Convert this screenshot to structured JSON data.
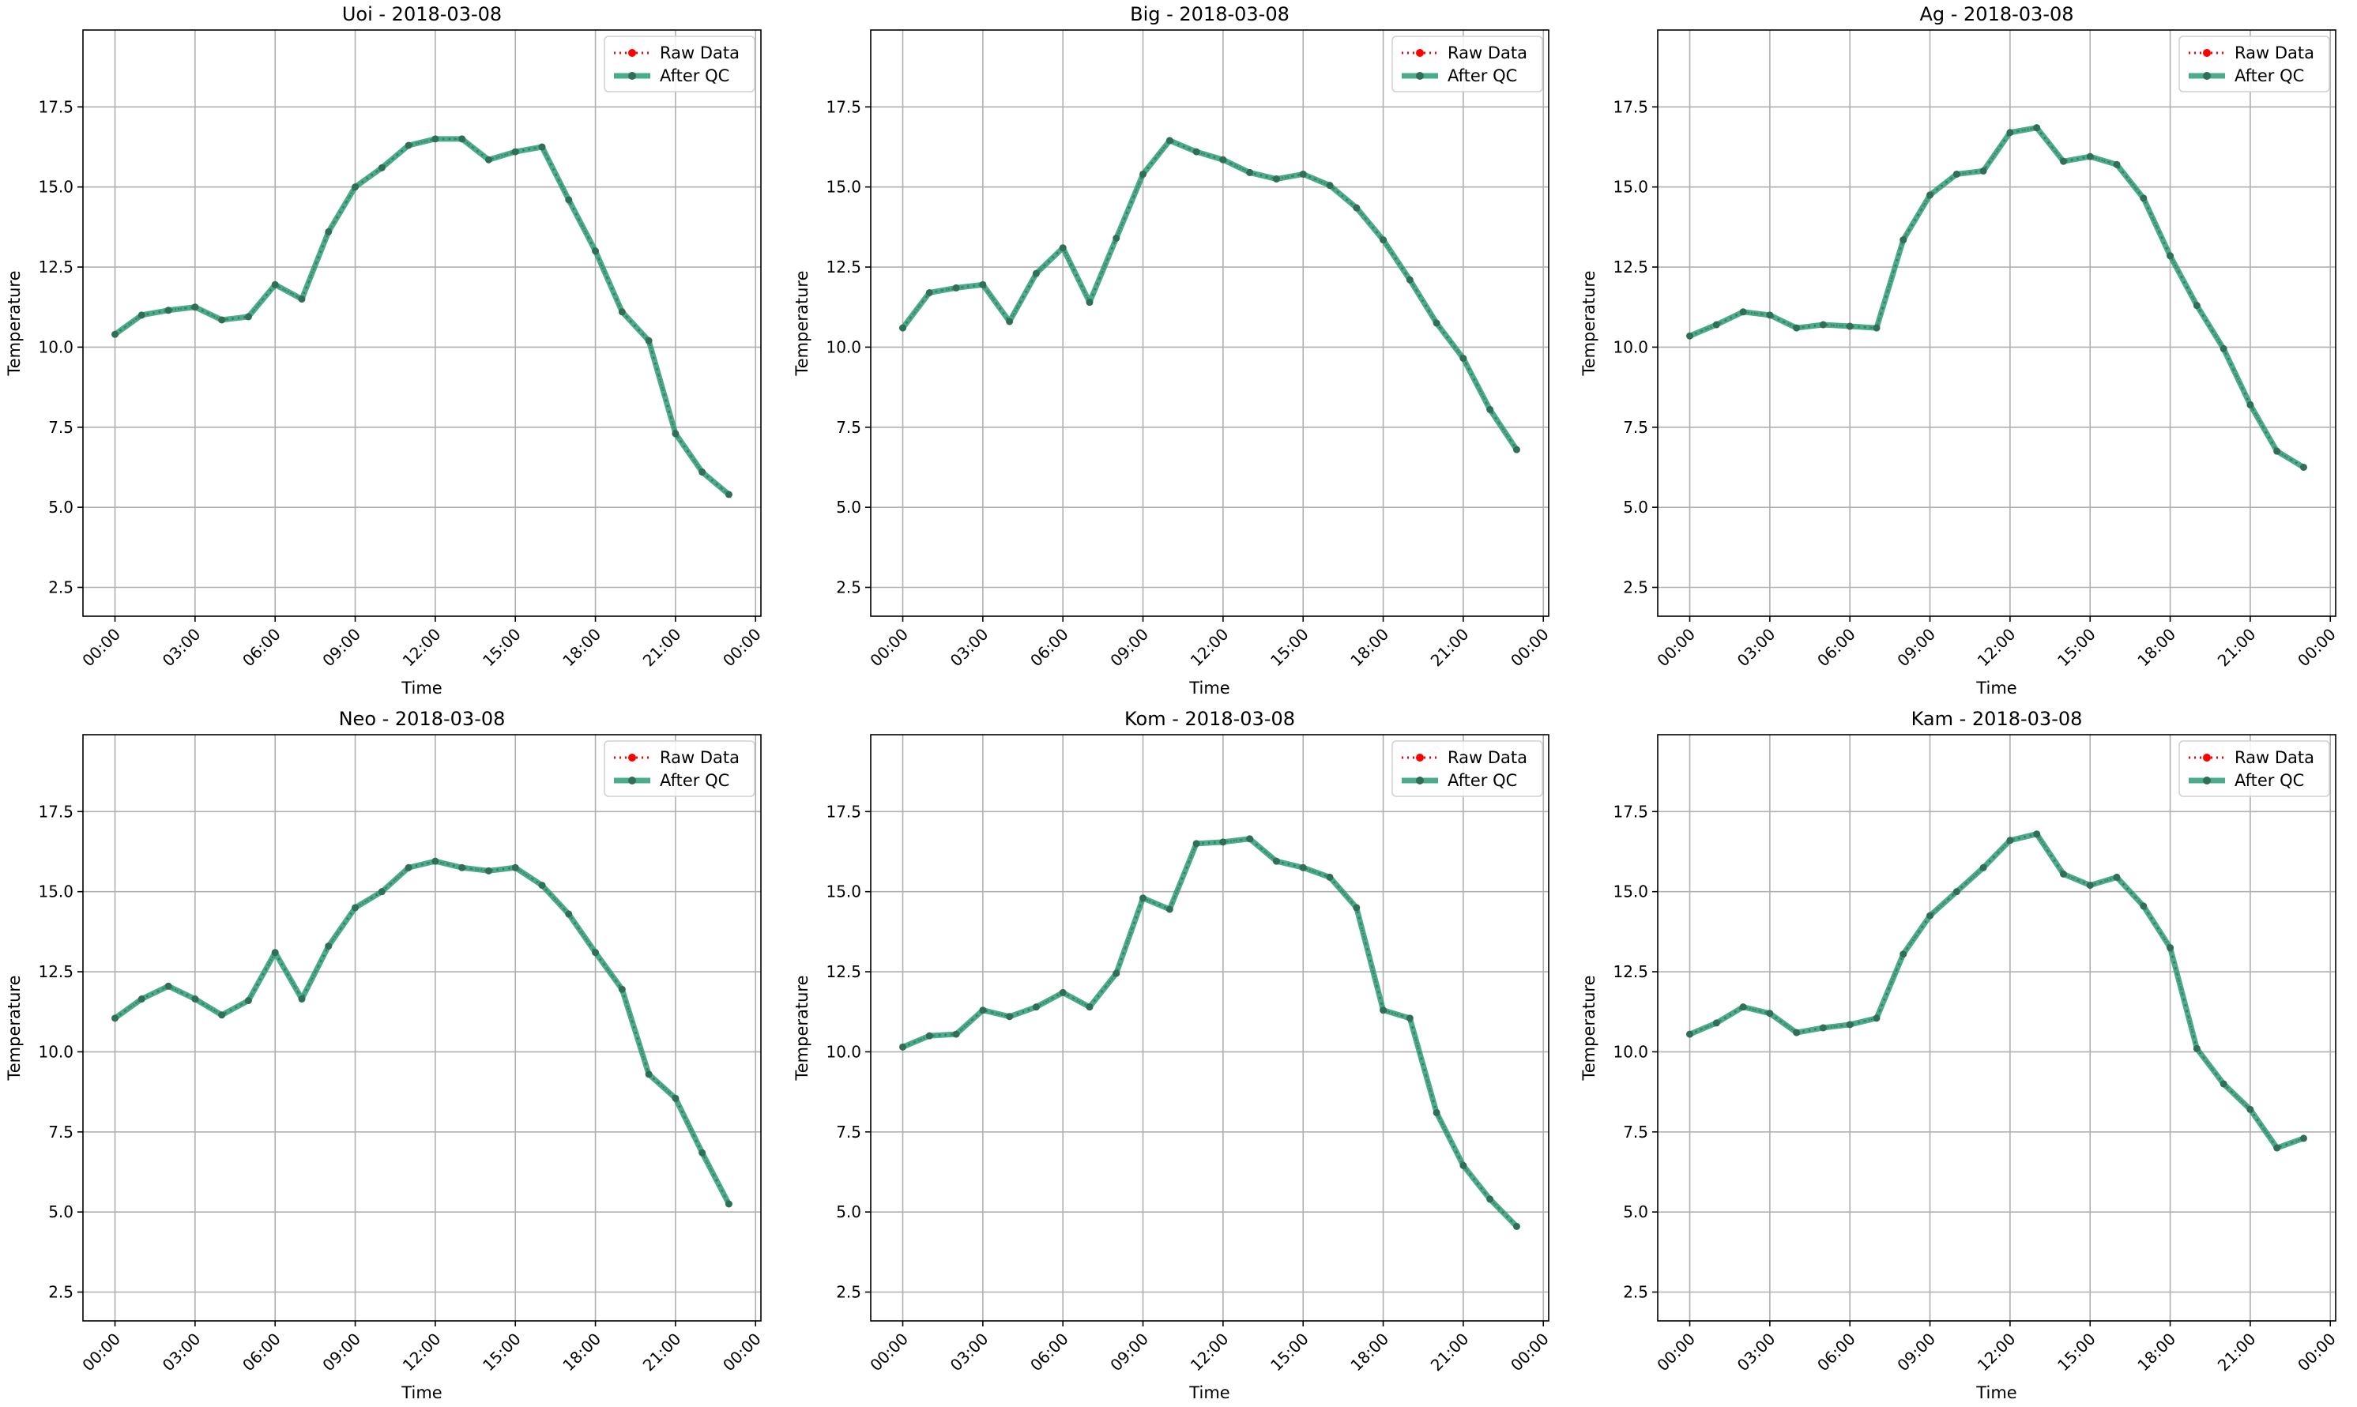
{
  "figure": {
    "x_ticks": [
      "00:00",
      "03:00",
      "06:00",
      "09:00",
      "12:00",
      "15:00",
      "18:00",
      "21:00",
      "00:00"
    ],
    "y_ticks": [
      "2.5",
      "5.0",
      "7.5",
      "10.0",
      "12.5",
      "15.0",
      "17.5"
    ],
    "legend": {
      "raw_label": "Raw Data",
      "qc_label": "After QC"
    },
    "colors": {
      "raw": "#ff0000",
      "qc": "#2a9d76",
      "qc_marker": "#2f6f55",
      "grid": "#b0b0b0"
    }
  },
  "chart_data": [
    {
      "type": "line",
      "title": "Uoi - 2018-03-08",
      "xlabel": "Time",
      "ylabel": "Temperature",
      "xlim": [
        -1.2,
        24.2
      ],
      "ylim": [
        1.6,
        19.9
      ],
      "grid": true,
      "legend_position": "upper-right",
      "x": [
        0,
        1,
        2,
        3,
        4,
        5,
        6,
        7,
        8,
        9,
        10,
        11,
        12,
        13,
        14,
        15,
        16,
        17,
        18,
        19,
        20,
        21,
        22,
        23
      ],
      "series": [
        {
          "name": "Raw Data",
          "values": [
            10.4,
            11.0,
            11.15,
            11.25,
            10.85,
            10.95,
            11.95,
            11.5,
            13.6,
            15.0,
            15.6,
            16.3,
            16.5,
            16.5,
            15.85,
            16.1,
            16.25,
            14.6,
            13.0,
            11.1,
            10.2,
            7.3,
            6.1,
            5.4
          ]
        },
        {
          "name": "After QC",
          "values": [
            10.4,
            11.0,
            11.15,
            11.25,
            10.85,
            10.95,
            11.95,
            11.5,
            13.6,
            15.0,
            15.6,
            16.3,
            16.5,
            16.5,
            15.85,
            16.1,
            16.25,
            14.6,
            13.0,
            11.1,
            10.2,
            7.3,
            6.1,
            5.4
          ]
        }
      ]
    },
    {
      "type": "line",
      "title": "Big - 2018-03-08",
      "xlabel": "Time",
      "ylabel": "Temperature",
      "xlim": [
        -1.2,
        24.2
      ],
      "ylim": [
        1.6,
        19.9
      ],
      "grid": true,
      "legend_position": "upper-right",
      "x": [
        0,
        1,
        2,
        3,
        4,
        5,
        6,
        7,
        8,
        9,
        10,
        11,
        12,
        13,
        14,
        15,
        16,
        17,
        18,
        19,
        20,
        21,
        22,
        23
      ],
      "series": [
        {
          "name": "Raw Data",
          "values": [
            10.6,
            11.7,
            11.85,
            11.95,
            10.8,
            12.3,
            13.1,
            11.4,
            13.4,
            15.4,
            16.45,
            16.1,
            15.85,
            15.45,
            15.25,
            15.4,
            15.05,
            14.35,
            13.35,
            12.1,
            10.75,
            9.65,
            8.05,
            6.8
          ]
        },
        {
          "name": "After QC",
          "values": [
            10.6,
            11.7,
            11.85,
            11.95,
            10.8,
            12.3,
            13.1,
            11.4,
            13.4,
            15.4,
            16.45,
            16.1,
            15.85,
            15.45,
            15.25,
            15.4,
            15.05,
            14.35,
            13.35,
            12.1,
            10.75,
            9.65,
            8.05,
            6.8
          ]
        }
      ]
    },
    {
      "type": "line",
      "title": "Ag - 2018-03-08",
      "xlabel": "Time",
      "ylabel": "Temperature",
      "xlim": [
        -1.2,
        24.2
      ],
      "ylim": [
        1.6,
        19.9
      ],
      "grid": true,
      "legend_position": "upper-right",
      "x": [
        0,
        1,
        2,
        3,
        4,
        5,
        6,
        7,
        8,
        9,
        10,
        11,
        12,
        13,
        14,
        15,
        16,
        17,
        18,
        19,
        20,
        21,
        22,
        23
      ],
      "series": [
        {
          "name": "Raw Data",
          "values": [
            10.35,
            10.7,
            11.1,
            11.0,
            10.6,
            10.7,
            10.65,
            10.6,
            13.35,
            14.75,
            15.4,
            15.5,
            16.7,
            16.85,
            15.8,
            15.95,
            15.7,
            14.65,
            12.85,
            11.3,
            9.95,
            8.2,
            6.75,
            6.25
          ]
        },
        {
          "name": "After QC",
          "values": [
            10.35,
            10.7,
            11.1,
            11.0,
            10.6,
            10.7,
            10.65,
            10.6,
            13.35,
            14.75,
            15.4,
            15.5,
            16.7,
            16.85,
            15.8,
            15.95,
            15.7,
            14.65,
            12.85,
            11.3,
            9.95,
            8.2,
            6.75,
            6.25
          ]
        }
      ]
    },
    {
      "type": "line",
      "title": "Neo - 2018-03-08",
      "xlabel": "Time",
      "ylabel": "Temperature",
      "xlim": [
        -1.2,
        24.2
      ],
      "ylim": [
        1.6,
        19.9
      ],
      "grid": true,
      "legend_position": "upper-right",
      "x": [
        0,
        1,
        2,
        3,
        4,
        5,
        6,
        7,
        8,
        9,
        10,
        11,
        12,
        13,
        14,
        15,
        16,
        17,
        18,
        19,
        20,
        21,
        22,
        23
      ],
      "series": [
        {
          "name": "Raw Data",
          "values": [
            11.05,
            11.65,
            12.05,
            11.65,
            11.15,
            11.6,
            13.1,
            11.65,
            13.3,
            14.5,
            15.0,
            15.75,
            15.95,
            15.75,
            15.65,
            15.75,
            15.2,
            14.3,
            13.1,
            11.95,
            9.3,
            8.55,
            6.85,
            5.25
          ]
        },
        {
          "name": "After QC",
          "values": [
            11.05,
            11.65,
            12.05,
            11.65,
            11.15,
            11.6,
            13.1,
            11.65,
            13.3,
            14.5,
            15.0,
            15.75,
            15.95,
            15.75,
            15.65,
            15.75,
            15.2,
            14.3,
            13.1,
            11.95,
            9.3,
            8.55,
            6.85,
            5.25
          ]
        }
      ]
    },
    {
      "type": "line",
      "title": "Kom - 2018-03-08",
      "xlabel": "Time",
      "ylabel": "Temperature",
      "xlim": [
        -1.2,
        24.2
      ],
      "ylim": [
        1.6,
        19.9
      ],
      "grid": true,
      "legend_position": "upper-right",
      "x": [
        0,
        1,
        2,
        3,
        4,
        5,
        6,
        7,
        8,
        9,
        10,
        11,
        12,
        13,
        14,
        15,
        16,
        17,
        18,
        19,
        20,
        21,
        22,
        23
      ],
      "series": [
        {
          "name": "Raw Data",
          "values": [
            10.15,
            10.5,
            10.55,
            11.3,
            11.1,
            11.4,
            11.85,
            11.4,
            12.45,
            14.8,
            14.45,
            16.5,
            16.55,
            16.65,
            15.95,
            15.75,
            15.45,
            14.5,
            11.3,
            11.05,
            8.1,
            6.45,
            5.4,
            4.55
          ]
        },
        {
          "name": "After QC",
          "values": [
            10.15,
            10.5,
            10.55,
            11.3,
            11.1,
            11.4,
            11.85,
            11.4,
            12.45,
            14.8,
            14.45,
            16.5,
            16.55,
            16.65,
            15.95,
            15.75,
            15.45,
            14.5,
            11.3,
            11.05,
            8.1,
            6.45,
            5.4,
            4.55
          ]
        }
      ]
    },
    {
      "type": "line",
      "title": "Kam - 2018-03-08",
      "xlabel": "Time",
      "ylabel": "Temperature",
      "xlim": [
        -1.2,
        24.2
      ],
      "ylim": [
        1.6,
        19.9
      ],
      "grid": true,
      "legend_position": "upper-right",
      "x": [
        0,
        1,
        2,
        3,
        4,
        5,
        6,
        7,
        8,
        9,
        10,
        11,
        12,
        13,
        14,
        15,
        16,
        17,
        18,
        19,
        20,
        21,
        22,
        23
      ],
      "series": [
        {
          "name": "Raw Data",
          "values": [
            10.55,
            10.9,
            11.4,
            11.2,
            10.6,
            10.75,
            10.85,
            11.05,
            13.05,
            14.25,
            15.0,
            15.75,
            16.6,
            16.8,
            15.55,
            15.2,
            15.45,
            14.55,
            13.25,
            10.1,
            9.0,
            8.2,
            7.0,
            7.3
          ]
        },
        {
          "name": "After QC",
          "values": [
            10.55,
            10.9,
            11.4,
            11.2,
            10.6,
            10.75,
            10.85,
            11.05,
            13.05,
            14.25,
            15.0,
            15.75,
            16.6,
            16.8,
            15.55,
            15.2,
            15.45,
            14.55,
            13.25,
            10.1,
            9.0,
            8.2,
            7.0,
            7.3
          ]
        }
      ]
    }
  ]
}
